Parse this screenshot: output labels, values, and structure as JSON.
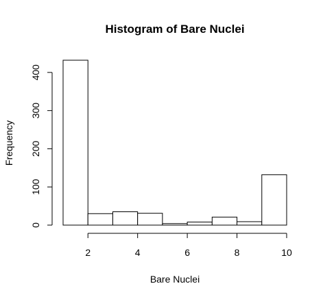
{
  "chart_data": {
    "type": "bar",
    "title": "Histogram of Bare Nuclei",
    "xlabel": "Bare Nuclei",
    "ylabel": "Frequency",
    "bins": [
      {
        "start": 1,
        "end": 2,
        "count": 432
      },
      {
        "start": 2,
        "end": 3,
        "count": 30
      },
      {
        "start": 3,
        "end": 4,
        "count": 35
      },
      {
        "start": 4,
        "end": 5,
        "count": 31
      },
      {
        "start": 5,
        "end": 6,
        "count": 4
      },
      {
        "start": 6,
        "end": 7,
        "count": 8
      },
      {
        "start": 7,
        "end": 8,
        "count": 21
      },
      {
        "start": 8,
        "end": 9,
        "count": 9
      },
      {
        "start": 9,
        "end": 10,
        "count": 132
      }
    ],
    "xlim": [
      1,
      10
    ],
    "ylim": [
      0,
      432
    ],
    "x_ticks": [
      2,
      4,
      6,
      8,
      10
    ],
    "y_ticks": [
      0,
      100,
      200,
      300,
      400
    ],
    "grid": false,
    "legend": "none"
  }
}
